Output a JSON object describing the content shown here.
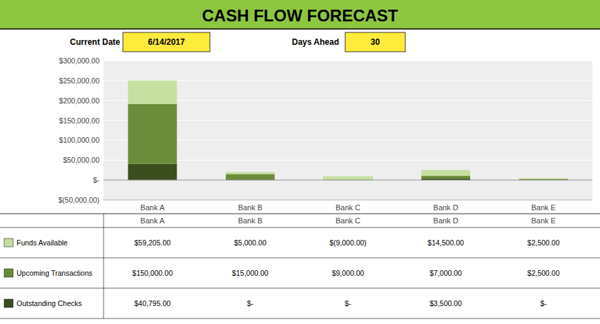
{
  "chart_data": {
    "type": "bar",
    "stacked": true,
    "title": "CASH FLOW FORECAST",
    "annotations": [
      {
        "label": "Current Date",
        "text": "6/14/2017"
      },
      {
        "label": "Days Ahead",
        "text": "30"
      }
    ],
    "categories": [
      "Bank A",
      "Bank B",
      "Bank C",
      "Bank D",
      "Bank E"
    ],
    "series": [
      {
        "name": "Outstanding Checks",
        "color": "#3B4E1E",
        "values": [
          40795,
          0,
          0,
          3500,
          0
        ],
        "value_labels": [
          "$40,795.00",
          "$-",
          "$-",
          "$3,500.00",
          "$-"
        ]
      },
      {
        "name": "Upcoming Transactions",
        "color": "#6B8C3A",
        "values": [
          150000,
          15000,
          9000,
          7000,
          2500
        ],
        "value_labels": [
          "$150,000.00",
          "$15,000.00",
          "$9,000.00",
          "$7,000.00",
          "$2,500.00"
        ]
      },
      {
        "name": "Funds Available",
        "color": "#C5E0A0",
        "values": [
          59205,
          5000,
          -9000,
          14500,
          2500
        ],
        "value_labels": [
          "$59,205.00",
          "$5,000.00",
          "$(9,000.00)",
          "$14,500.00",
          "$2,500.00"
        ]
      }
    ],
    "ylim": [
      -50000,
      300000
    ],
    "yticks": [
      {
        "value": -50000,
        "label": "$(50,000.00)"
      },
      {
        "value": 0,
        "label": "$-"
      },
      {
        "value": 50000,
        "label": "$50,000.00"
      },
      {
        "value": 100000,
        "label": "$100,000.00"
      },
      {
        "value": 150000,
        "label": "$150,000.00"
      },
      {
        "value": 200000,
        "label": "$200,000.00"
      },
      {
        "value": 250000,
        "label": "$250,000.00"
      },
      {
        "value": 300000,
        "label": "$300,000.00"
      }
    ],
    "grid": true
  }
}
